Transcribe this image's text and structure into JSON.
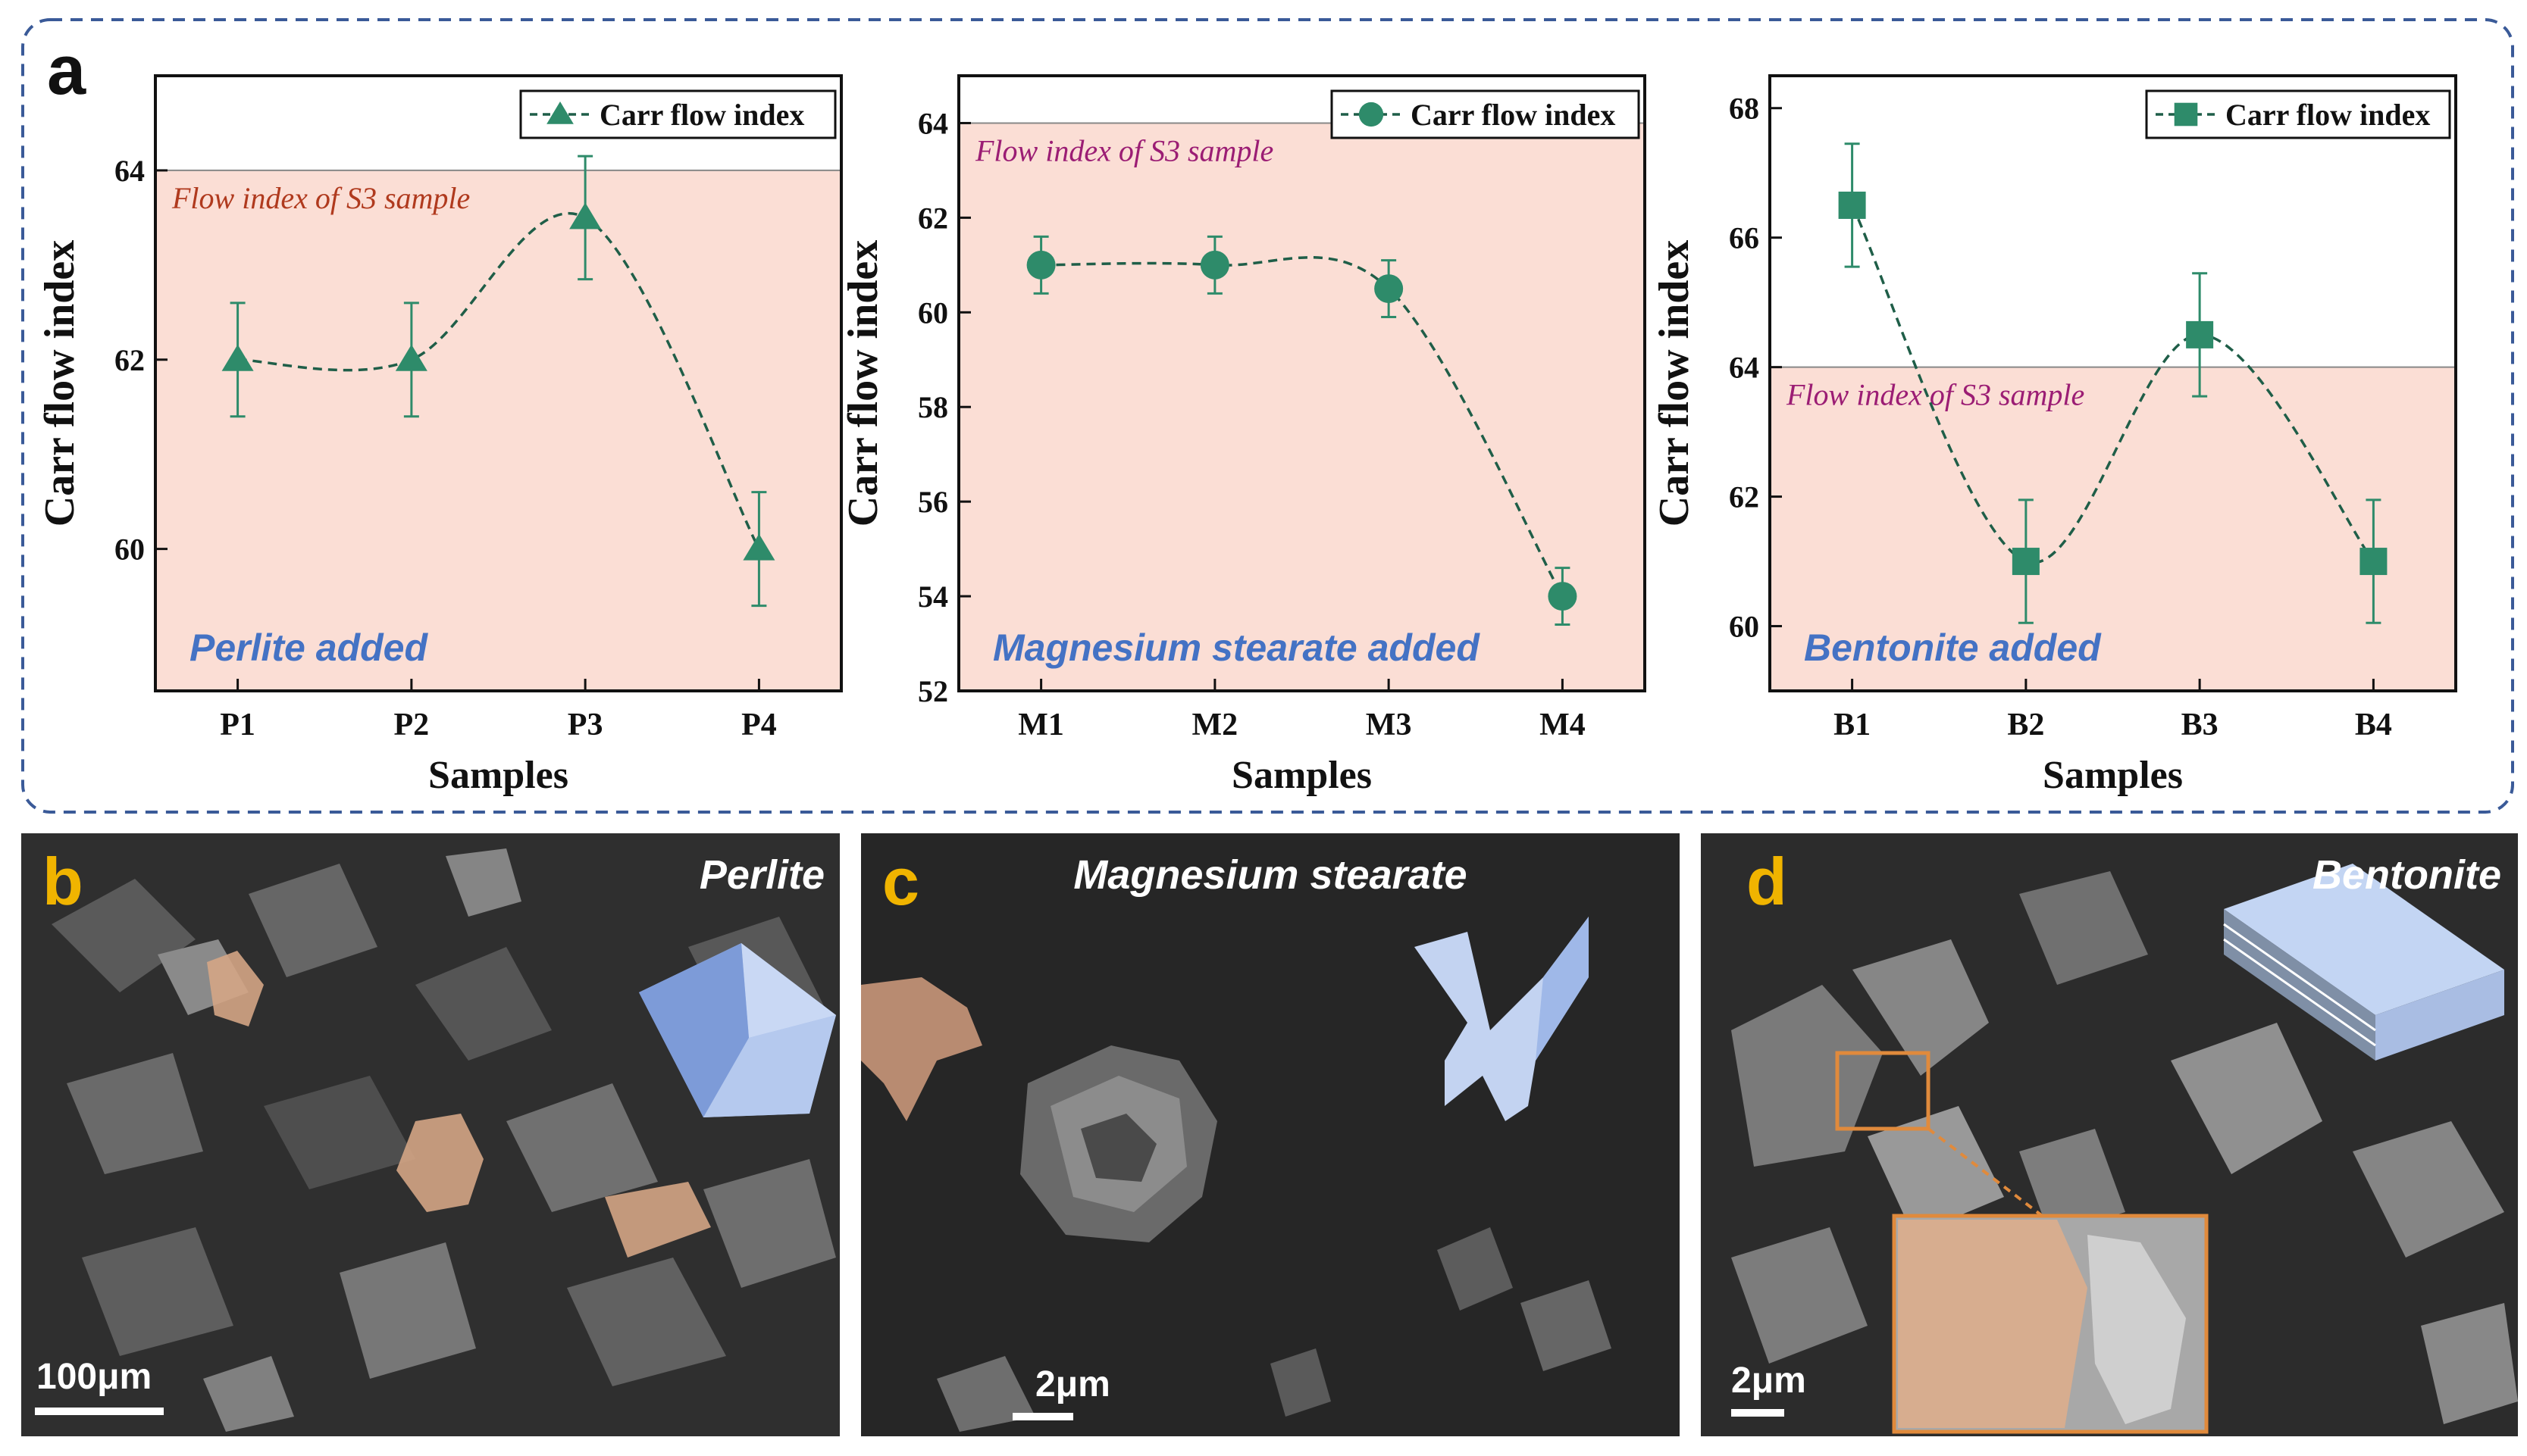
{
  "panel_letters": {
    "a": "a",
    "b": "b",
    "c": "c",
    "d": "d"
  },
  "colors": {
    "series": "#2e8b6a",
    "band": "#fbded5",
    "frame_dash": "#3a5a98",
    "annot_perlite": "#b03a1e",
    "annot_other": "#9b1d74",
    "added_label": "#4472c4",
    "letter_yellow": "#f0b400"
  },
  "chart_data": [
    {
      "type": "line",
      "categories": [
        "P1",
        "P2",
        "P3",
        "P4"
      ],
      "series": [
        {
          "name": "Carr flow index",
          "values": [
            62.0,
            62.0,
            63.5,
            60.0
          ],
          "error": [
            0.6,
            0.6,
            0.65,
            0.6
          ],
          "marker": "triangle"
        }
      ],
      "xlabel": "Samples",
      "ylabel": "Carr flow index",
      "ylim": [
        58.5,
        65.0
      ],
      "yticks": [
        60,
        62,
        64
      ],
      "reference_value": 64,
      "reference_label": "Flow index of S3 sample",
      "panel_note": "Perlite added",
      "legend": "top-right"
    },
    {
      "type": "line",
      "categories": [
        "M1",
        "M2",
        "M3",
        "M4"
      ],
      "series": [
        {
          "name": "Carr flow index",
          "values": [
            61.0,
            61.0,
            60.5,
            54.0
          ],
          "error": [
            0.6,
            0.6,
            0.6,
            0.6
          ],
          "marker": "circle"
        }
      ],
      "xlabel": "Samples",
      "ylabel": "Carr flow index",
      "ylim": [
        52,
        65
      ],
      "yticks": [
        52,
        54,
        56,
        58,
        60,
        62,
        64
      ],
      "reference_value": 64,
      "reference_label": "Flow index of S3 sample",
      "panel_note": "Magnesium stearate added",
      "legend": "top-right"
    },
    {
      "type": "line",
      "categories": [
        "B1",
        "B2",
        "B3",
        "B4"
      ],
      "series": [
        {
          "name": "Carr flow index",
          "values": [
            66.5,
            61.0,
            64.5,
            61.0
          ],
          "error": [
            0.95,
            0.95,
            0.95,
            0.95
          ],
          "marker": "square"
        }
      ],
      "xlabel": "Samples",
      "ylabel": "Carr flow index",
      "ylim": [
        59,
        68.5
      ],
      "yticks": [
        60,
        62,
        64,
        66,
        68
      ],
      "reference_value": 64,
      "reference_label": "Flow index of S3 sample",
      "panel_note": "Bentonite added",
      "legend": "top-right"
    }
  ],
  "sem_panels": [
    {
      "letter": "b",
      "title": "Perlite",
      "scale_bar": "100μm",
      "icon": "pentagon-crystal-icon"
    },
    {
      "letter": "c",
      "title": "Magnesium stearate",
      "scale_bar": "2μm",
      "icon": "x-shaped-particle-icon"
    },
    {
      "letter": "d",
      "title": "Bentonite",
      "scale_bar": "2μm",
      "icon": "layered-sheet-icon"
    }
  ]
}
